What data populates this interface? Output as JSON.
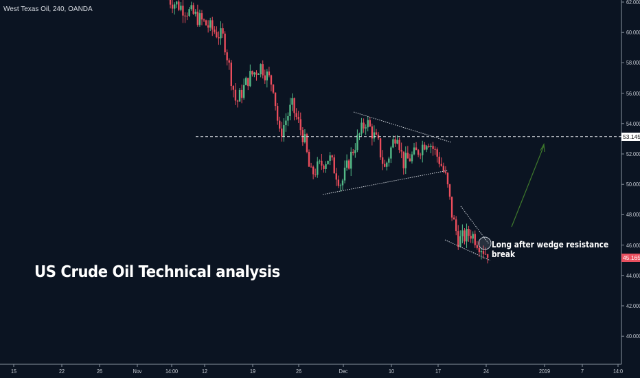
{
  "chart_data": {
    "type": "candlestick",
    "symbol_label": "West Texas Oil, 240, OANDA",
    "title": "US Crude Oil Technical analysis",
    "annotation": "Long after wedge resistance break",
    "ylim": [
      39.0,
      62.1
    ],
    "y_ticks": [
      "62.000",
      "60.000",
      "58.000",
      "56.000",
      "54.000",
      "52.000",
      "50.000",
      "48.000",
      "46.000",
      "44.000",
      "42.000",
      "40.000"
    ],
    "x_ticks": [
      "15",
      "22",
      "26",
      "Nov",
      "14:00",
      "12",
      "19",
      "26",
      "Dec",
      "10",
      "17",
      "24",
      "2019",
      "7",
      "14:0"
    ],
    "horizontal_level": {
      "value": 53.145,
      "label": "53.145"
    },
    "last_price": {
      "value": 45.165,
      "label": "45.165"
    },
    "price_path_day_index_close": [
      [
        0,
        62.2
      ],
      [
        4,
        61.2
      ],
      [
        9,
        59.6
      ],
      [
        11,
        55.3
      ],
      [
        13,
        57.0
      ],
      [
        15,
        57.8
      ],
      [
        17,
        56.5
      ],
      [
        18,
        53.2
      ],
      [
        20,
        55.2
      ],
      [
        22,
        53.0
      ],
      [
        23,
        50.6
      ],
      [
        26,
        51.8
      ],
      [
        28,
        50.0
      ],
      [
        30,
        52.4
      ],
      [
        32,
        54.2
      ],
      [
        34,
        52.6
      ],
      [
        35,
        51.0
      ],
      [
        37,
        53.6
      ],
      [
        38,
        51.4
      ],
      [
        40,
        52.0
      ],
      [
        42,
        53.0
      ],
      [
        44,
        51.5
      ],
      [
        45,
        50.3
      ],
      [
        46,
        47.8
      ],
      [
        47,
        46.3
      ],
      [
        49,
        46.8
      ],
      [
        51,
        45.7
      ],
      [
        52,
        45.165
      ]
    ],
    "colors": {
      "up": "#53b987",
      "down": "#eb4d5c",
      "background": "#0b1422",
      "arrow": "#3f7a2c",
      "last_price_bg": "#e9505f"
    }
  }
}
